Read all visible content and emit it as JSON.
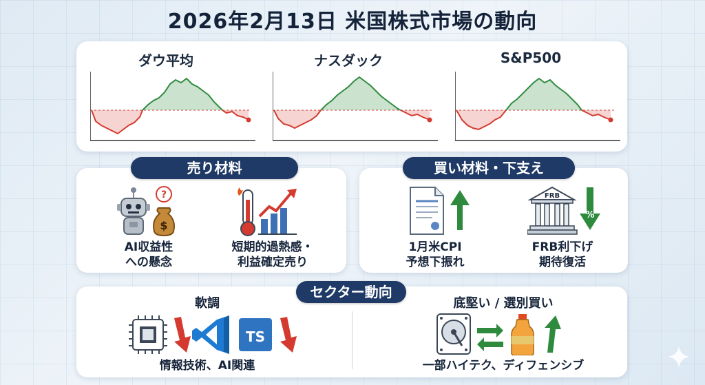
{
  "title": "2026年2月13日 米国株式市場の動向",
  "markets": [
    {
      "label": "ダウ平均"
    },
    {
      "label": "ナスダック"
    },
    {
      "label": "S&P500"
    }
  ],
  "sell": {
    "heading": "売り材料",
    "items": [
      {
        "caption_line1": "AI収益性",
        "caption_line2": "への懸念",
        "icon": "robot-money-icon"
      },
      {
        "caption_line1": "短期的過熱感・",
        "caption_line2": "利益確定売り",
        "icon": "thermometer-chart-icon"
      }
    ]
  },
  "buy": {
    "heading": "買い材料・下支え",
    "items": [
      {
        "caption_line1": "1月米CPI",
        "caption_line2": "予想下振れ",
        "icon": "document-up-icon"
      },
      {
        "caption_line1": "FRB利下げ",
        "caption_line2": "期待復活",
        "icon": "bank-down-icon",
        "bank_label": "FRB",
        "badge": "%"
      }
    ]
  },
  "sector": {
    "heading": "セクター動向",
    "weak": {
      "heading": "軟調",
      "caption": "情報技術、AI関連",
      "ts_label": "TS"
    },
    "firm": {
      "heading": "底堅い / 選別買い",
      "caption": "一部ハイテク、ディフェンシブ"
    }
  },
  "colors": {
    "navy": "#1f3a66",
    "up_green": "#2e8b3e",
    "down_red": "#d43a2f"
  }
}
